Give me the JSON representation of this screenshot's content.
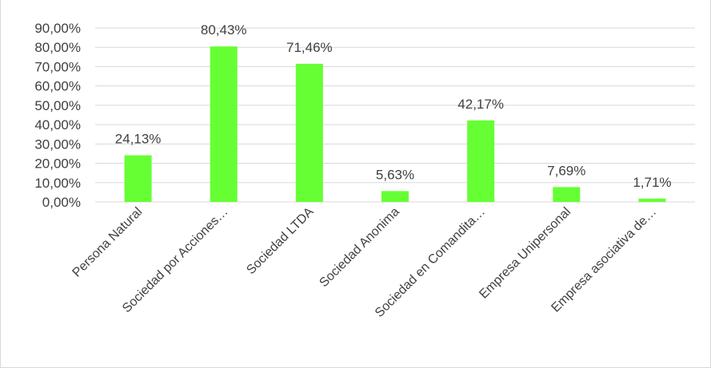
{
  "chart_data": {
    "type": "bar",
    "title": "",
    "xlabel": "",
    "ylabel": "",
    "categories": [
      "Persona Natural",
      "Sociedad por Acciones…",
      "Sociedad LTDA",
      "Sociedad Anonima",
      "Sociedad en Comandita…",
      "Empresa Unipersonal",
      "Empresa asociativa de…"
    ],
    "values": [
      24.13,
      80.43,
      71.46,
      5.63,
      42.17,
      7.69,
      1.71
    ],
    "value_labels": [
      "24,13%",
      "80,43%",
      "71,46%",
      "5,63%",
      "42,17%",
      "7,69%",
      "1,71%"
    ],
    "yticks": [
      "0,00%",
      "10,00%",
      "20,00%",
      "30,00%",
      "40,00%",
      "50,00%",
      "60,00%",
      "70,00%",
      "80,00%",
      "90,00%"
    ],
    "ylim": [
      0,
      90
    ],
    "grid": true,
    "bar_color": "#66ff33",
    "grid_color": "#d9d9d9"
  }
}
